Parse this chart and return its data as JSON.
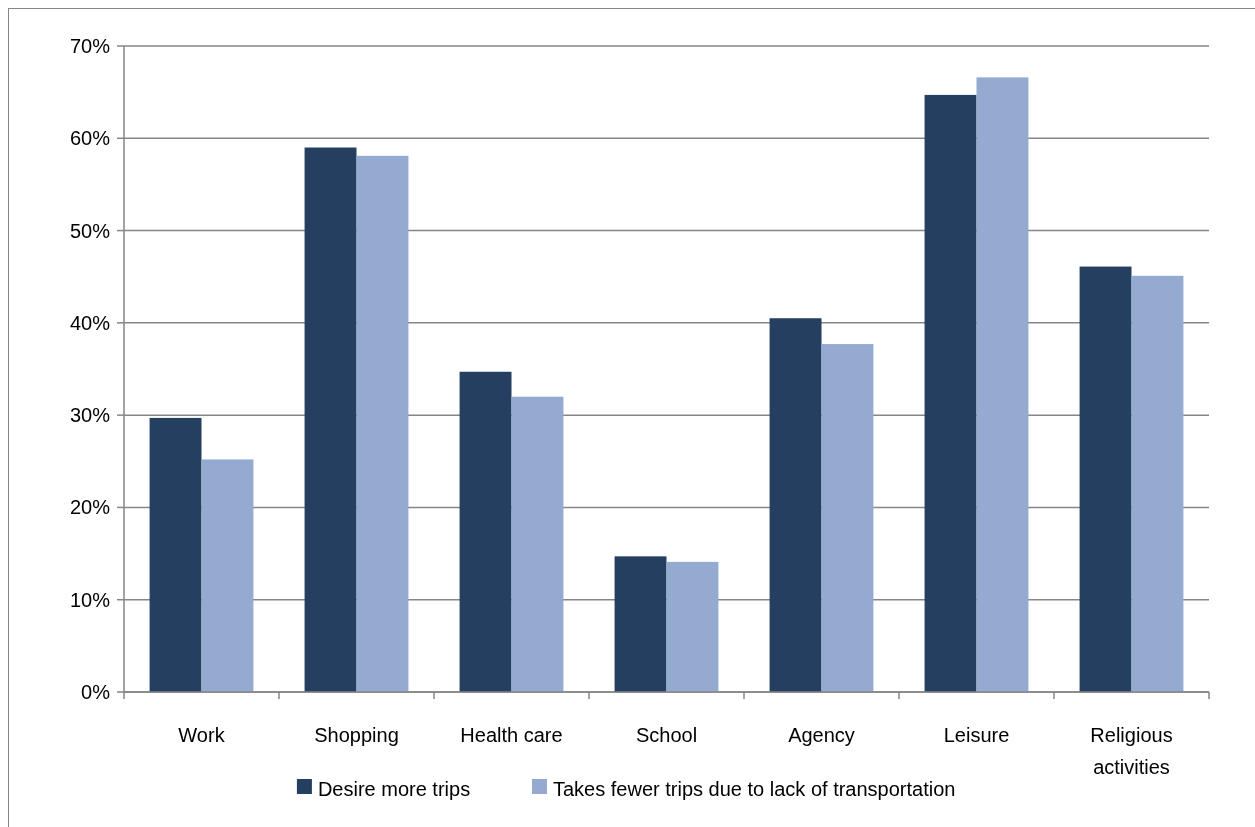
{
  "chart_data": {
    "type": "bar",
    "categories": [
      "Work",
      "Shopping",
      "Health care",
      "School",
      "Agency",
      "Leisure",
      "Religious activities"
    ],
    "series": [
      {
        "name": "Desire more trips",
        "color": "#253f60",
        "values": [
          29.7,
          59.0,
          34.7,
          14.7,
          40.5,
          64.7,
          46.1
        ]
      },
      {
        "name": "Takes fewer trips due to lack of transportation",
        "color": "#95aad0",
        "values": [
          25.2,
          58.1,
          32.0,
          14.1,
          37.7,
          66.6,
          45.1
        ]
      }
    ],
    "ylim": [
      0,
      70
    ],
    "yticks": [
      {
        "value": 0,
        "label": "0%"
      },
      {
        "value": 10,
        "label": "10%"
      },
      {
        "value": 20,
        "label": "20%"
      },
      {
        "value": 30,
        "label": "30%"
      },
      {
        "value": 40,
        "label": "40%"
      },
      {
        "value": 50,
        "label": "50%"
      },
      {
        "value": 60,
        "label": "60%"
      },
      {
        "value": 70,
        "label": "70%"
      }
    ],
    "grid": "y",
    "legend": "bottom"
  }
}
